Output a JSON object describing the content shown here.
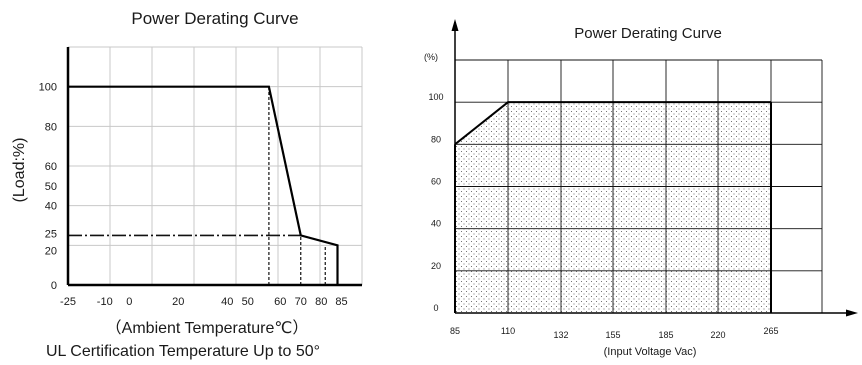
{
  "chart_data": [
    {
      "type": "line",
      "title": "Power Derating Curve",
      "xlabel": "（Ambient Temperature℃）",
      "ylabel": "(Load:%)",
      "note": "UL Certification Temperature Up to 50°",
      "x_ticks": [
        "-25",
        "-10",
        "0",
        "20",
        "40",
        "50",
        "60",
        "70",
        "80",
        "85"
      ],
      "x_tick_values": [
        -25,
        -10,
        0,
        20,
        40,
        50,
        60,
        70,
        80,
        85
      ],
      "y_ticks": [
        "0",
        "20",
        "25",
        "40",
        "50",
        "60",
        "80",
        "100"
      ],
      "y_tick_values": [
        0,
        20,
        25,
        40,
        50,
        60,
        80,
        100
      ],
      "xlim": [
        -25,
        95
      ],
      "ylim": [
        0,
        120
      ],
      "grid": true,
      "series": [
        {
          "x": [
            -25,
            57,
            70,
            85,
            85
          ],
          "y": [
            100,
            100,
            25,
            20,
            0
          ]
        }
      ],
      "reference_lines": [
        {
          "x": [
            -25,
            70
          ],
          "y": [
            25,
            25
          ]
        },
        {
          "x": [
            57,
            57
          ],
          "y": [
            0,
            100
          ]
        },
        {
          "x": [
            70,
            70
          ],
          "y": [
            0,
            25
          ]
        },
        {
          "x": [
            80,
            80
          ],
          "y": [
            0,
            20
          ]
        }
      ]
    },
    {
      "type": "area",
      "title": "Power Derating Curve",
      "xlabel": "(Input Voltage Vac)",
      "ylabel": "(%)",
      "x_ticks": [
        "85",
        "110",
        "132",
        "155",
        "185",
        "220",
        "265"
      ],
      "x_tick_values": [
        85,
        110,
        132,
        155,
        185,
        220,
        265
      ],
      "y_ticks": [
        "0",
        "20",
        "40",
        "60",
        "80",
        "100"
      ],
      "y_tick_values": [
        0,
        20,
        40,
        60,
        80,
        100
      ],
      "ylim": [
        0,
        120
      ],
      "grid": true,
      "series": [
        {
          "x": [
            85,
            110,
            265
          ],
          "y": [
            80,
            100,
            100
          ]
        }
      ]
    }
  ]
}
